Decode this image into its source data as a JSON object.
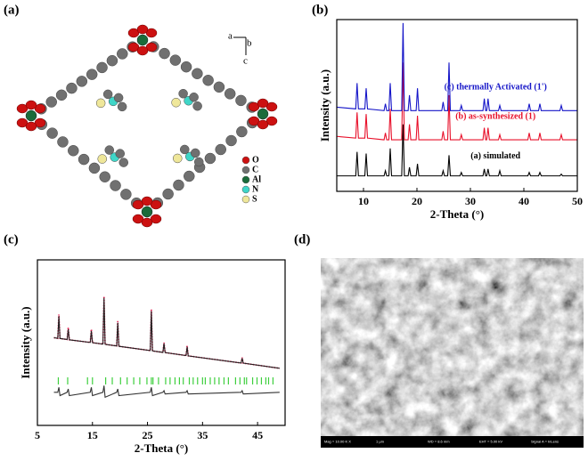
{
  "panel_a": {
    "label": "(a)",
    "axes": [
      "a",
      "b",
      "c"
    ],
    "legend": [
      {
        "label": "O",
        "color": "#cc1111"
      },
      {
        "label": "C",
        "color": "#707070"
      },
      {
        "label": "Al",
        "color": "#1a6b3a"
      },
      {
        "label": "N",
        "color": "#3fd6c8"
      },
      {
        "label": "S",
        "color": "#efe79a"
      }
    ]
  },
  "chart_data": [
    {
      "type": "line",
      "label": "(b)",
      "xlabel": "2-Theta (°)",
      "ylabel": "Intensity (a.u.)",
      "x": [
        5,
        8.55,
        8.8,
        9.05,
        10.25,
        10.5,
        10.75,
        13.85,
        14.1,
        14.35,
        14.75,
        15,
        15.25,
        17.15,
        17.4,
        17.65,
        18.35,
        18.6,
        18.85,
        19.85,
        20.1,
        20.35,
        24.65,
        24.9,
        25.15,
        25.75,
        26,
        26.25,
        28.05,
        28.3,
        28.55,
        32.35,
        32.6,
        32.85,
        33.05,
        33.3,
        33.55,
        35.25,
        35.5,
        35.75,
        40.75,
        41,
        41.25,
        42.75,
        43,
        43.25,
        46.75,
        47,
        47.25,
        50
      ],
      "xlim": [
        5,
        50
      ],
      "xticks": [
        10,
        20,
        30,
        40,
        50
      ],
      "ylim": [
        0,
        100
      ],
      "series": [
        {
          "name": "(a) simulated",
          "color": "#000000",
          "values": [
            9,
            9,
            23,
            9,
            9,
            22,
            9,
            9,
            12,
            9,
            9,
            25,
            9,
            9,
            39,
            9,
            9,
            14,
            9,
            9,
            16,
            9,
            9,
            12,
            9,
            9,
            21,
            9,
            9,
            11,
            9,
            9,
            13,
            9,
            9,
            13,
            9,
            9,
            12,
            9,
            9,
            11,
            9,
            9,
            11,
            9,
            9,
            10,
            9,
            9
          ]
        },
        {
          "name": "(b) as-synthesized (1)",
          "color": "#e8102a",
          "values": [
            32,
            31,
            46,
            31,
            31,
            45,
            31,
            30,
            34,
            30,
            30,
            48,
            30,
            30,
            75,
            30,
            30,
            39,
            30,
            30,
            44,
            30,
            30,
            35,
            30,
            30,
            56,
            30,
            30,
            33,
            30,
            30,
            37,
            30,
            30,
            37,
            30,
            30,
            33,
            30,
            30,
            34,
            30,
            30,
            34,
            30,
            30,
            33,
            30,
            30
          ]
        },
        {
          "name": "(c) thermally Activated (1')",
          "color": "#1515c8",
          "values": [
            49,
            48,
            63,
            48,
            48,
            60,
            48,
            47,
            51,
            47,
            47,
            63,
            47,
            47,
            98,
            47,
            47,
            56,
            47,
            47,
            60,
            47,
            47,
            52,
            47,
            47,
            75,
            47,
            47,
            50,
            47,
            47,
            54,
            47,
            47,
            54,
            47,
            47,
            50,
            47,
            47,
            51,
            47,
            47,
            51,
            47,
            47,
            50,
            47,
            47
          ]
        }
      ]
    },
    {
      "type": "line",
      "label": "(c)",
      "xlabel": "2-Theta (°)",
      "ylabel": "Intensity (a.u.)",
      "x": [
        8,
        8.7,
        8.9,
        9.1,
        10.4,
        10.6,
        10.8,
        14.6,
        14.8,
        15.0,
        16.9,
        17.1,
        17.3,
        19.4,
        19.6,
        19.8,
        25.5,
        25.7,
        25.9,
        27.8,
        28,
        28.2,
        32,
        32.2,
        32.4,
        42,
        42.2,
        42.4,
        49
      ],
      "xlim": [
        5,
        50
      ],
      "xticks": [
        5,
        15,
        25,
        35,
        45
      ],
      "ylim": [
        0,
        100
      ],
      "series": [
        {
          "color": "#e0144a",
          "dash": "dotted",
          "values": [
            53,
            52.6,
            67,
            52.5,
            51.9,
            59,
            51.7,
            50.1,
            58,
            50,
            49.1,
            78,
            49,
            48,
            63,
            47.8,
            45.2,
            70,
            45,
            44.1,
            50,
            44,
            42.2,
            48,
            42,
            37.7,
            41,
            37.6,
            34.5
          ]
        },
        {
          "color": "#222222",
          "values": [
            53,
            52.6,
            66,
            52.5,
            51.9,
            58,
            51.7,
            50.1,
            57,
            50,
            49.1,
            77,
            49,
            48,
            62,
            47.8,
            45.2,
            69,
            45,
            44.1,
            49.5,
            44,
            42.2,
            47.5,
            42,
            37.7,
            40.5,
            37.6,
            34.5
          ]
        },
        {
          "color": "#333333",
          "values": [
            20,
            20,
            23,
            18,
            20,
            22,
            18,
            20,
            23,
            18,
            20,
            24,
            17,
            20,
            22,
            18,
            20,
            23,
            18,
            20,
            21,
            19,
            20,
            21,
            19,
            20,
            21,
            19,
            20
          ]
        }
      ],
      "reflections": {
        "color": "#3ecf3e",
        "values": [
          8.8,
          10.5,
          14.1,
          15.0,
          17.4,
          18.6,
          20.1,
          21.3,
          22.5,
          23.6,
          24.9,
          25.7,
          26.0,
          27.0,
          28.3,
          29.1,
          30.0,
          30.8,
          31.5,
          32.6,
          33.3,
          34.1,
          35.0,
          35.5,
          36.4,
          37.2,
          38.0,
          38.9,
          39.7,
          41.0,
          41.8,
          42.6,
          43.0,
          44.1,
          44.9,
          45.7,
          46.5,
          47.0,
          47.8
        ]
      }
    }
  ],
  "panel_d": {
    "label": "(d)",
    "info": [
      "Mag = 10.00 K X",
      "1 µm",
      "WD = 8.6 mm",
      "EHT = 5.00 kV",
      "Signal A = InLens"
    ]
  }
}
